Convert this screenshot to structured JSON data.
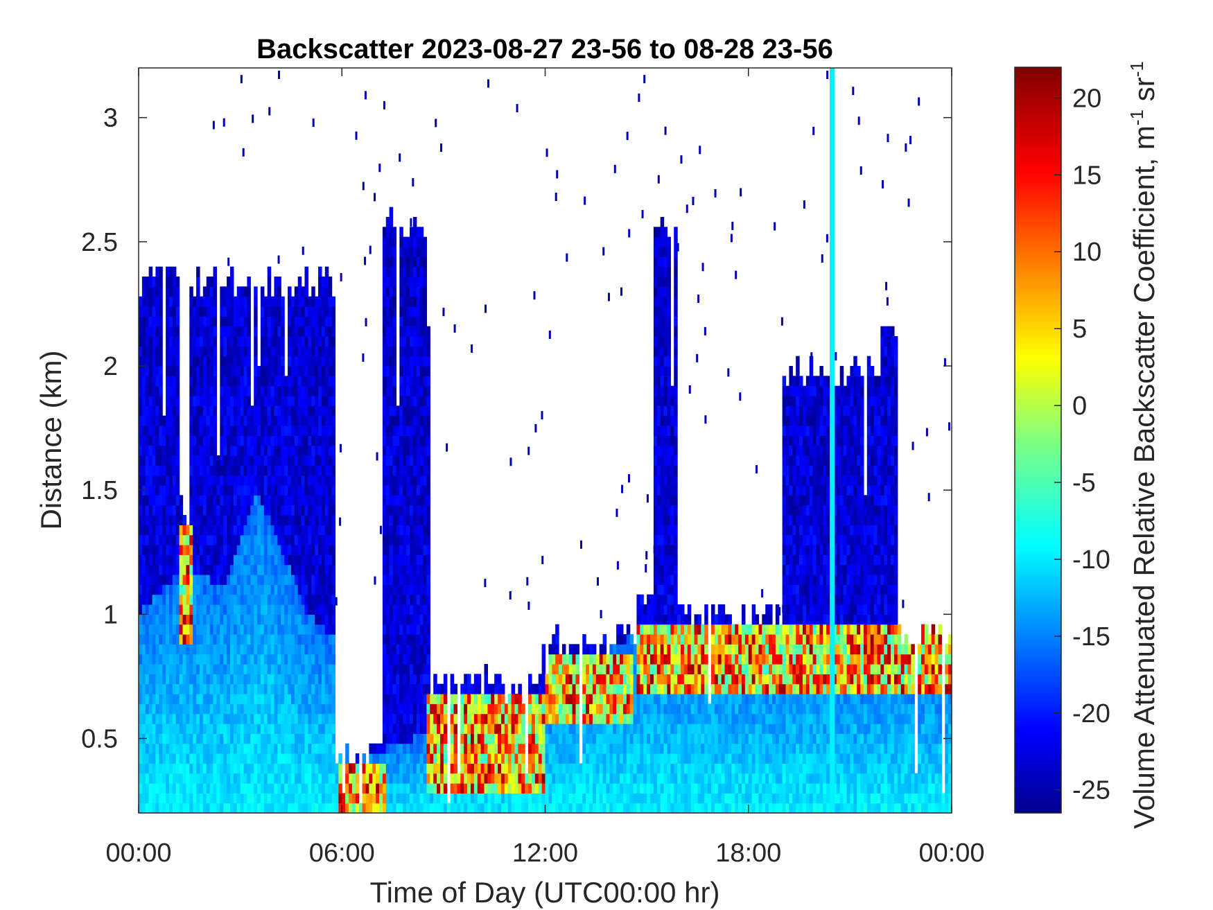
{
  "chart_data": {
    "type": "heatmap",
    "title": "Backscatter 2023-08-27 23-56 to 08-28 23-56",
    "xlabel": "Time of Day (UTC00:00 hr)",
    "ylabel": "Distance (km)",
    "xlim_hours": [
      0,
      24
    ],
    "ylim": [
      0.2,
      3.2
    ],
    "x_ticks": [
      {
        "value": 0,
        "label": "00:00"
      },
      {
        "value": 6,
        "label": "06:00"
      },
      {
        "value": 12,
        "label": "12:00"
      },
      {
        "value": 18,
        "label": "18:00"
      },
      {
        "value": 24,
        "label": "00:00"
      }
    ],
    "y_ticks": [
      {
        "value": 0.5,
        "label": "0.5"
      },
      {
        "value": 1,
        "label": "1"
      },
      {
        "value": 1.5,
        "label": "1.5"
      },
      {
        "value": 2,
        "label": "2"
      },
      {
        "value": 2.5,
        "label": "2.5"
      },
      {
        "value": 3,
        "label": "3"
      }
    ],
    "colorbar": {
      "label": "Volume Attenuated Relative Backscatter Coefficient, m",
      "label_sup1": "-1",
      "label_mid": " sr",
      "label_sup2": "-1",
      "range": [
        -26.5,
        22
      ],
      "ticks": [
        {
          "value": 20,
          "label": "20"
        },
        {
          "value": 15,
          "label": "15"
        },
        {
          "value": 10,
          "label": "10"
        },
        {
          "value": 5,
          "label": "5"
        },
        {
          "value": 0,
          "label": "0"
        },
        {
          "value": -5,
          "label": "-5"
        },
        {
          "value": -10,
          "label": "-10"
        },
        {
          "value": -15,
          "label": "-15"
        },
        {
          "value": -20,
          "label": "-20"
        },
        {
          "value": -25,
          "label": "-25"
        }
      ],
      "colormap": "jet"
    },
    "columns_top_km": [
      {
        "t0": 0.0,
        "t1": 1.2,
        "top": 2.33
      },
      {
        "t0": 1.2,
        "t1": 1.55,
        "top": 1.4
      },
      {
        "t0": 1.55,
        "t1": 5.8,
        "top": 2.32
      },
      {
        "t0": 5.8,
        "t1": 7.2,
        "top": 0.42
      },
      {
        "t0": 7.2,
        "t1": 8.6,
        "top": 2.55
      },
      {
        "t0": 8.6,
        "t1": 11.9,
        "top": 0.72
      },
      {
        "t0": 11.9,
        "t1": 14.7,
        "top": 0.88
      },
      {
        "t0": 14.7,
        "t1": 15.2,
        "top": 1.05
      },
      {
        "t0": 15.2,
        "t1": 15.85,
        "top": 2.55
      },
      {
        "t0": 15.85,
        "t1": 19.0,
        "top": 0.98
      },
      {
        "t0": 19.0,
        "t1": 21.9,
        "top": 1.95
      },
      {
        "t0": 21.9,
        "t1": 22.4,
        "top": 2.13
      },
      {
        "t0": 22.4,
        "t1": 24.0,
        "top": 0.9
      }
    ],
    "aerosol_layer_top_km": [
      {
        "t": 0.0,
        "top": 1.0
      },
      {
        "t": 1.4,
        "top": 1.2
      },
      {
        "t": 2.5,
        "top": 1.1
      },
      {
        "t": 3.5,
        "top": 1.5
      },
      {
        "t": 5.0,
        "top": 1.0
      },
      {
        "t": 5.8,
        "top": 0.9
      },
      {
        "t": 6.2,
        "top": 0.4
      },
      {
        "t": 9.0,
        "top": 0.55
      },
      {
        "t": 12.0,
        "top": 0.7
      },
      {
        "t": 15.0,
        "top": 0.95
      },
      {
        "t": 18.0,
        "top": 0.85
      },
      {
        "t": 24.0,
        "top": 0.8
      }
    ],
    "high_backscatter_bands": [
      {
        "t0": 1.2,
        "t1": 1.6,
        "z0": 0.9,
        "z1": 1.35
      },
      {
        "t0": 5.9,
        "t1": 7.3,
        "z0": 0.2,
        "z1": 0.4
      },
      {
        "t0": 8.5,
        "t1": 12.0,
        "z0": 0.3,
        "z1": 0.7
      },
      {
        "t0": 12.0,
        "t1": 14.6,
        "z0": 0.55,
        "z1": 0.85
      },
      {
        "t0": 14.7,
        "t1": 24.0,
        "z0": 0.7,
        "z1": 0.95
      }
    ],
    "vertical_artifact_hours": [
      20.4,
      20.55
    ],
    "grid": false
  }
}
